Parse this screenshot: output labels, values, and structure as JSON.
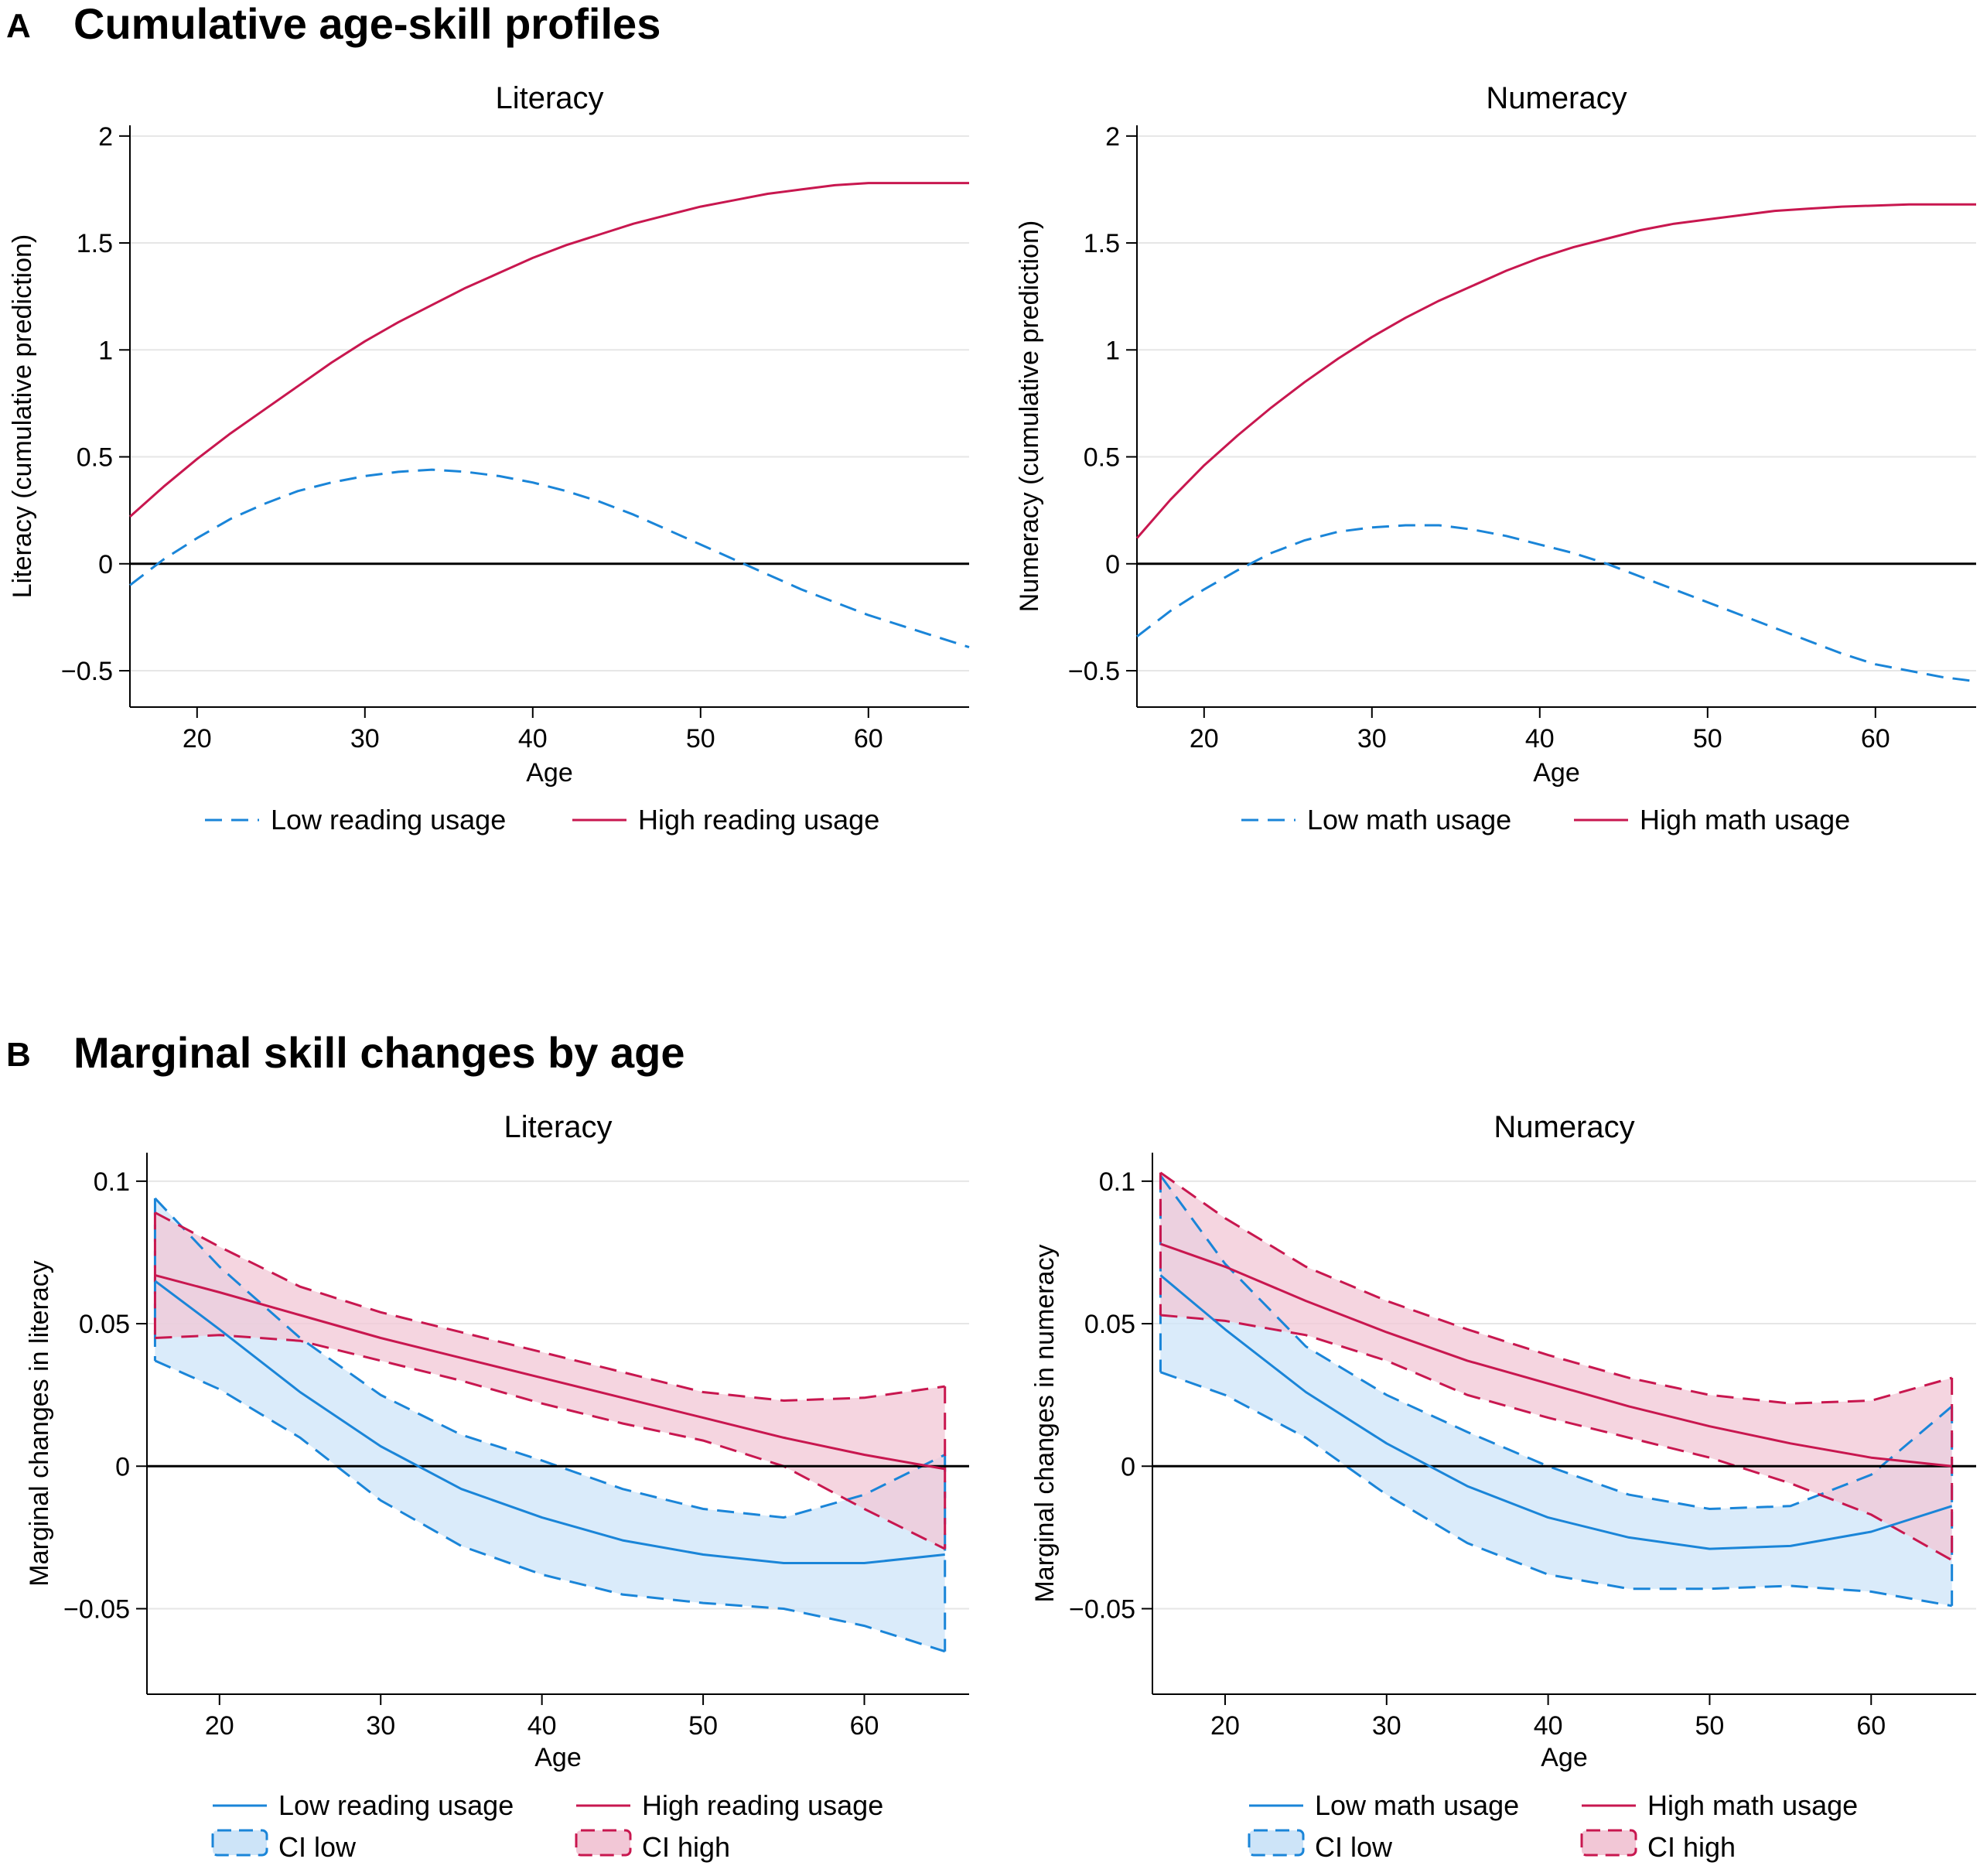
{
  "panels": {
    "A": {
      "letter": "A",
      "title": "Cumulative age-skill profiles"
    },
    "B": {
      "letter": "B",
      "title": "Marginal skill changes by age"
    }
  },
  "colors": {
    "low": "#1a85d8",
    "high": "#c8174f",
    "low_fill": "#cde4f8",
    "high_fill": "#f2c7d6",
    "overlap_fill": "#c3b2d8",
    "grid": "#e6e6e6"
  },
  "chart_data": [
    {
      "type": "line",
      "title": "Literacy",
      "xlabel": "Age",
      "ylabel": "Literacy (cumulative prediction)",
      "xlim": [
        16,
        66
      ],
      "ylim": [
        -0.67,
        2.05
      ],
      "xticks": [
        20,
        30,
        40,
        50,
        60
      ],
      "yticks": [
        -0.5,
        0,
        0.5,
        1,
        1.5,
        2
      ],
      "ytick_labels": [
        "−0.5",
        "0",
        "0.5",
        "1",
        "1.5",
        "2"
      ],
      "grid": true,
      "legend": "bottom",
      "series": [
        {
          "name": "Low reading usage",
          "style": "dashed",
          "color": "#1a85d8",
          "x": [
            16,
            18,
            20,
            22,
            24,
            26,
            28,
            30,
            32,
            34,
            36,
            38,
            40,
            42,
            44,
            46,
            48,
            50,
            52,
            54,
            56,
            58,
            60,
            62,
            64,
            66
          ],
          "values": [
            -0.1,
            0.02,
            0.12,
            0.21,
            0.28,
            0.34,
            0.38,
            0.41,
            0.43,
            0.44,
            0.43,
            0.41,
            0.38,
            0.34,
            0.29,
            0.23,
            0.16,
            0.09,
            0.02,
            -0.05,
            -0.12,
            -0.18,
            -0.24,
            -0.29,
            -0.34,
            -0.39
          ]
        },
        {
          "name": "High reading usage",
          "style": "solid",
          "color": "#c8174f",
          "x": [
            16,
            18,
            20,
            22,
            24,
            26,
            28,
            30,
            32,
            34,
            36,
            38,
            40,
            42,
            44,
            46,
            48,
            50,
            52,
            54,
            56,
            58,
            60,
            62,
            64,
            66
          ],
          "values": [
            0.22,
            0.36,
            0.49,
            0.61,
            0.72,
            0.83,
            0.94,
            1.04,
            1.13,
            1.21,
            1.29,
            1.36,
            1.43,
            1.49,
            1.54,
            1.59,
            1.63,
            1.67,
            1.7,
            1.73,
            1.75,
            1.77,
            1.78,
            1.78,
            1.78,
            1.78
          ]
        }
      ]
    },
    {
      "type": "line",
      "title": "Numeracy",
      "xlabel": "Age",
      "ylabel": "Numeracy (cumulative prediction)",
      "xlim": [
        16,
        66
      ],
      "ylim": [
        -0.67,
        2.05
      ],
      "xticks": [
        20,
        30,
        40,
        50,
        60
      ],
      "yticks": [
        -0.5,
        0,
        0.5,
        1,
        1.5,
        2
      ],
      "ytick_labels": [
        "−0.5",
        "0",
        "0.5",
        "1",
        "1.5",
        "2"
      ],
      "grid": true,
      "legend": "bottom",
      "series": [
        {
          "name": "Low math usage",
          "style": "dashed",
          "color": "#1a85d8",
          "x": [
            16,
            18,
            20,
            22,
            24,
            26,
            28,
            30,
            32,
            34,
            36,
            38,
            40,
            42,
            44,
            46,
            48,
            50,
            52,
            54,
            56,
            58,
            60,
            62,
            64,
            66
          ],
          "values": [
            -0.34,
            -0.22,
            -0.12,
            -0.03,
            0.05,
            0.11,
            0.15,
            0.17,
            0.18,
            0.18,
            0.16,
            0.13,
            0.09,
            0.05,
            0.0,
            -0.06,
            -0.12,
            -0.18,
            -0.24,
            -0.3,
            -0.36,
            -0.42,
            -0.47,
            -0.5,
            -0.53,
            -0.55
          ]
        },
        {
          "name": "High math usage",
          "style": "solid",
          "color": "#c8174f",
          "x": [
            16,
            18,
            20,
            22,
            24,
            26,
            28,
            30,
            32,
            34,
            36,
            38,
            40,
            42,
            44,
            46,
            48,
            50,
            52,
            54,
            56,
            58,
            60,
            62,
            64,
            66
          ],
          "values": [
            0.12,
            0.3,
            0.46,
            0.6,
            0.73,
            0.85,
            0.96,
            1.06,
            1.15,
            1.23,
            1.3,
            1.37,
            1.43,
            1.48,
            1.52,
            1.56,
            1.59,
            1.61,
            1.63,
            1.65,
            1.66,
            1.67,
            1.675,
            1.68,
            1.68,
            1.68
          ]
        }
      ]
    },
    {
      "type": "area",
      "title": "Literacy",
      "xlabel": "Age",
      "ylabel": "Marginal changes in literacy",
      "xlim": [
        15.5,
        66.5
      ],
      "ylim": [
        -0.08,
        0.11
      ],
      "xticks": [
        20,
        30,
        40,
        50,
        60
      ],
      "yticks": [
        -0.05,
        0,
        0.05,
        0.1
      ],
      "ytick_labels": [
        "−0.05",
        "0",
        "0.05",
        "0.1"
      ],
      "grid": true,
      "legend": "bottom",
      "series": [
        {
          "name": "Low reading usage",
          "style": "solid",
          "color": "#1a85d8",
          "x": [
            16,
            20,
            25,
            30,
            35,
            40,
            45,
            50,
            55,
            60,
            65
          ],
          "values": [
            0.065,
            0.048,
            0.026,
            0.007,
            -0.008,
            -0.018,
            -0.026,
            -0.031,
            -0.034,
            -0.034,
            -0.031
          ]
        },
        {
          "name": "High reading usage",
          "style": "solid",
          "color": "#c8174f",
          "x": [
            16,
            20,
            25,
            30,
            35,
            40,
            45,
            50,
            55,
            60,
            65
          ],
          "values": [
            0.067,
            0.061,
            0.053,
            0.045,
            0.038,
            0.031,
            0.024,
            0.017,
            0.01,
            0.004,
            -0.001
          ]
        },
        {
          "name": "CI low",
          "type": "band",
          "color": "#1a85d8",
          "x": [
            16,
            20,
            25,
            30,
            35,
            40,
            45,
            50,
            55,
            60,
            65
          ],
          "upper": [
            0.094,
            0.07,
            0.045,
            0.025,
            0.011,
            0.002,
            -0.008,
            -0.015,
            -0.018,
            -0.01,
            0.004
          ],
          "lower": [
            0.037,
            0.027,
            0.01,
            -0.012,
            -0.028,
            -0.038,
            -0.045,
            -0.048,
            -0.05,
            -0.056,
            -0.065
          ]
        },
        {
          "name": "CI high",
          "type": "band",
          "color": "#c8174f",
          "x": [
            16,
            20,
            25,
            30,
            35,
            40,
            45,
            50,
            55,
            60,
            65
          ],
          "upper": [
            0.089,
            0.077,
            0.063,
            0.054,
            0.047,
            0.04,
            0.033,
            0.026,
            0.023,
            0.024,
            0.028
          ],
          "lower": [
            0.045,
            0.046,
            0.044,
            0.037,
            0.03,
            0.022,
            0.015,
            0.009,
            0.0,
            -0.015,
            -0.029
          ]
        }
      ]
    },
    {
      "type": "area",
      "title": "Numeracy",
      "xlabel": "Age",
      "ylabel": "Marginal changes in numeracy",
      "xlim": [
        15.5,
        66.5
      ],
      "ylim": [
        -0.08,
        0.11
      ],
      "xticks": [
        20,
        30,
        40,
        50,
        60
      ],
      "yticks": [
        -0.05,
        0,
        0.05,
        0.1
      ],
      "ytick_labels": [
        "−0.05",
        "0",
        "0.05",
        "0.1"
      ],
      "grid": true,
      "legend": "bottom",
      "series": [
        {
          "name": "Low math usage",
          "style": "solid",
          "color": "#1a85d8",
          "x": [
            16,
            20,
            25,
            30,
            35,
            40,
            45,
            50,
            55,
            60,
            65
          ],
          "values": [
            0.067,
            0.048,
            0.026,
            0.008,
            -0.007,
            -0.018,
            -0.025,
            -0.029,
            -0.028,
            -0.023,
            -0.014
          ]
        },
        {
          "name": "High math usage",
          "style": "solid",
          "color": "#c8174f",
          "x": [
            16,
            20,
            25,
            30,
            35,
            40,
            45,
            50,
            55,
            60,
            65
          ],
          "values": [
            0.078,
            0.07,
            0.058,
            0.047,
            0.037,
            0.029,
            0.021,
            0.014,
            0.008,
            0.003,
            0.0
          ]
        },
        {
          "name": "CI low",
          "type": "band",
          "color": "#1a85d8",
          "x": [
            16,
            20,
            25,
            30,
            35,
            40,
            45,
            50,
            55,
            60,
            65
          ],
          "upper": [
            0.102,
            0.071,
            0.042,
            0.025,
            0.012,
            0.0,
            -0.01,
            -0.015,
            -0.014,
            -0.003,
            0.021
          ],
          "lower": [
            0.033,
            0.025,
            0.01,
            -0.01,
            -0.027,
            -0.038,
            -0.043,
            -0.043,
            -0.042,
            -0.044,
            -0.049
          ]
        },
        {
          "name": "CI high",
          "type": "band",
          "color": "#c8174f",
          "x": [
            16,
            20,
            25,
            30,
            35,
            40,
            45,
            50,
            55,
            60,
            65
          ],
          "upper": [
            0.103,
            0.087,
            0.07,
            0.058,
            0.048,
            0.039,
            0.031,
            0.025,
            0.022,
            0.023,
            0.031
          ],
          "lower": [
            0.053,
            0.051,
            0.046,
            0.037,
            0.025,
            0.017,
            0.01,
            0.003,
            -0.006,
            -0.017,
            -0.033
          ]
        }
      ]
    }
  ]
}
